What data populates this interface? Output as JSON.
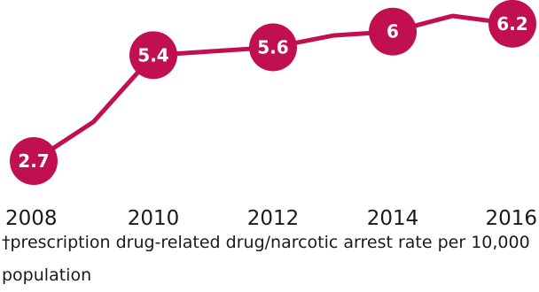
{
  "chart_data": {
    "type": "line",
    "x": [
      2008,
      2009,
      2010,
      2011,
      2012,
      2013,
      2014,
      2015,
      2016
    ],
    "values": [
      2.7,
      3.7,
      5.4,
      5.5,
      5.6,
      5.9,
      6.0,
      6.4,
      6.2
    ],
    "data_labels": [
      {
        "year": 2008,
        "text": "2.7"
      },
      {
        "year": 2010,
        "text": "5.4"
      },
      {
        "year": 2012,
        "text": "5.6"
      },
      {
        "year": 2014,
        "text": "6"
      },
      {
        "year": 2016,
        "text": "6.2"
      }
    ],
    "x_ticks": [
      "2008",
      "2010",
      "2012",
      "2014",
      "2016"
    ],
    "ylim": [
      2.7,
      6.4
    ],
    "grid": false,
    "legend": "none",
    "color": "#c1104f"
  },
  "footnote": "†prescription drug-related drug/narcotic arrest rate per 10,000 population"
}
